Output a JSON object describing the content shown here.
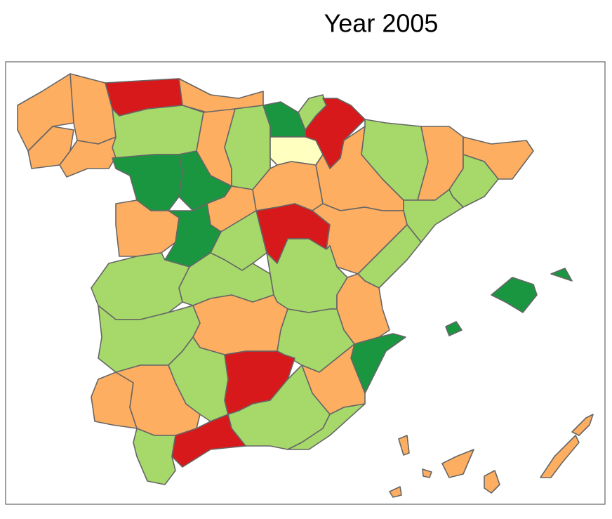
{
  "title": "Year 2005"
}
